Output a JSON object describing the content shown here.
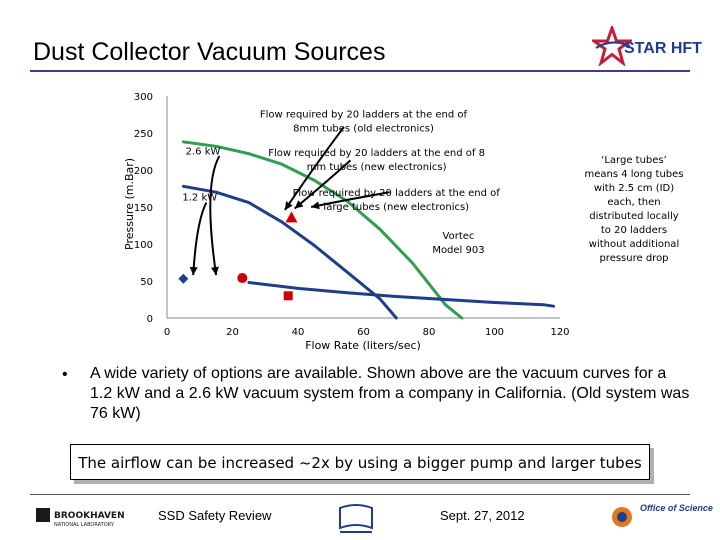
{
  "slide": {
    "title": "Dust Collector Vacuum Sources",
    "logo": "STAR HFT",
    "right_note": "‘Large tubes’ means 4 long tubes with 2.5 cm (ID) each, then distributed locally to 20 ladders without additional pressure drop",
    "bullet": "A wide variety of options are available.  Shown above are the vacuum curves for a 1.2 kW and a 2.6 kW vacuum system from a company in California.  (Old system was 76 kW)",
    "callout": "The airflow can be increased ~2x by using a bigger pump and larger tubes",
    "footer_left": "SSD Safety Review",
    "footer_date": "Sept. 27, 2012",
    "footer_logo_left": "BROOKHAVEN NATIONAL LABORATORY",
    "footer_logo_right": "Office of Science"
  },
  "chart_data": {
    "type": "scatter",
    "xlabel": "Flow Rate (liters/sec)",
    "ylabel": "Pressure (m.Bar)",
    "xlim": [
      0,
      120
    ],
    "ylim": [
      0,
      300
    ],
    "xticks": [
      "0",
      "20",
      "40",
      "60",
      "80",
      "100",
      "120"
    ],
    "yticks": [
      "0",
      "50",
      "100",
      "150",
      "200",
      "250",
      "300"
    ],
    "grid": false,
    "series": [
      {
        "name": "2.6 kW",
        "color": "#2e9e4f",
        "points": [
          [
            5,
            238
          ],
          [
            15,
            232
          ],
          [
            25,
            222
          ],
          [
            35,
            208
          ],
          [
            45,
            186
          ],
          [
            55,
            158
          ],
          [
            65,
            120
          ],
          [
            75,
            74
          ],
          [
            85,
            18
          ],
          [
            90,
            0
          ]
        ]
      },
      {
        "name": "1.2 kW",
        "color": "#1f3d8a",
        "points": [
          [
            5,
            178
          ],
          [
            15,
            170
          ],
          [
            25,
            156
          ],
          [
            35,
            130
          ],
          [
            45,
            98
          ],
          [
            55,
            62
          ],
          [
            65,
            26
          ],
          [
            70,
            0
          ]
        ]
      },
      {
        "name": "Vortec Model 903",
        "color": "#1f3d8a",
        "points": [
          [
            25,
            48
          ],
          [
            40,
            40
          ],
          [
            55,
            34
          ],
          [
            70,
            29
          ],
          [
            85,
            25
          ],
          [
            100,
            21
          ],
          [
            115,
            18
          ],
          [
            118,
            16
          ]
        ]
      }
    ],
    "markers": [
      {
        "shape": "diamond",
        "color": "#1f3d8a",
        "x": 5,
        "y": 53
      },
      {
        "shape": "circle",
        "color": "#cc0000",
        "x": 23,
        "y": 54
      },
      {
        "shape": "square",
        "color": "#cc0000",
        "x": 37,
        "y": 30
      },
      {
        "shape": "triangle",
        "color": "#cc0000",
        "x": 38,
        "y": 136
      }
    ],
    "annotations": [
      {
        "text_lines": [
          "Flow required by 20 ladders at the end of",
          "8mm tubes (old electronics)"
        ],
        "x": 60,
        "y": 271
      },
      {
        "text_lines": [
          "Flow required by 20 ladders at the end of 8",
          "mm tubes (new electronics)"
        ],
        "x": 64,
        "y": 219
      },
      {
        "text_lines": [
          "Flow required by 20 ladders at the end of",
          "large tubes (new electronics)"
        ],
        "x": 70,
        "y": 165
      },
      {
        "text_lines": [
          "Vortec",
          "Model 903"
        ],
        "x": 89,
        "y": 107
      },
      {
        "text_lines": [
          "2.6 kW"
        ],
        "x": 11,
        "y": 221
      },
      {
        "text_lines": [
          "1.2 kW"
        ],
        "x": 10,
        "y": 159
      }
    ]
  }
}
